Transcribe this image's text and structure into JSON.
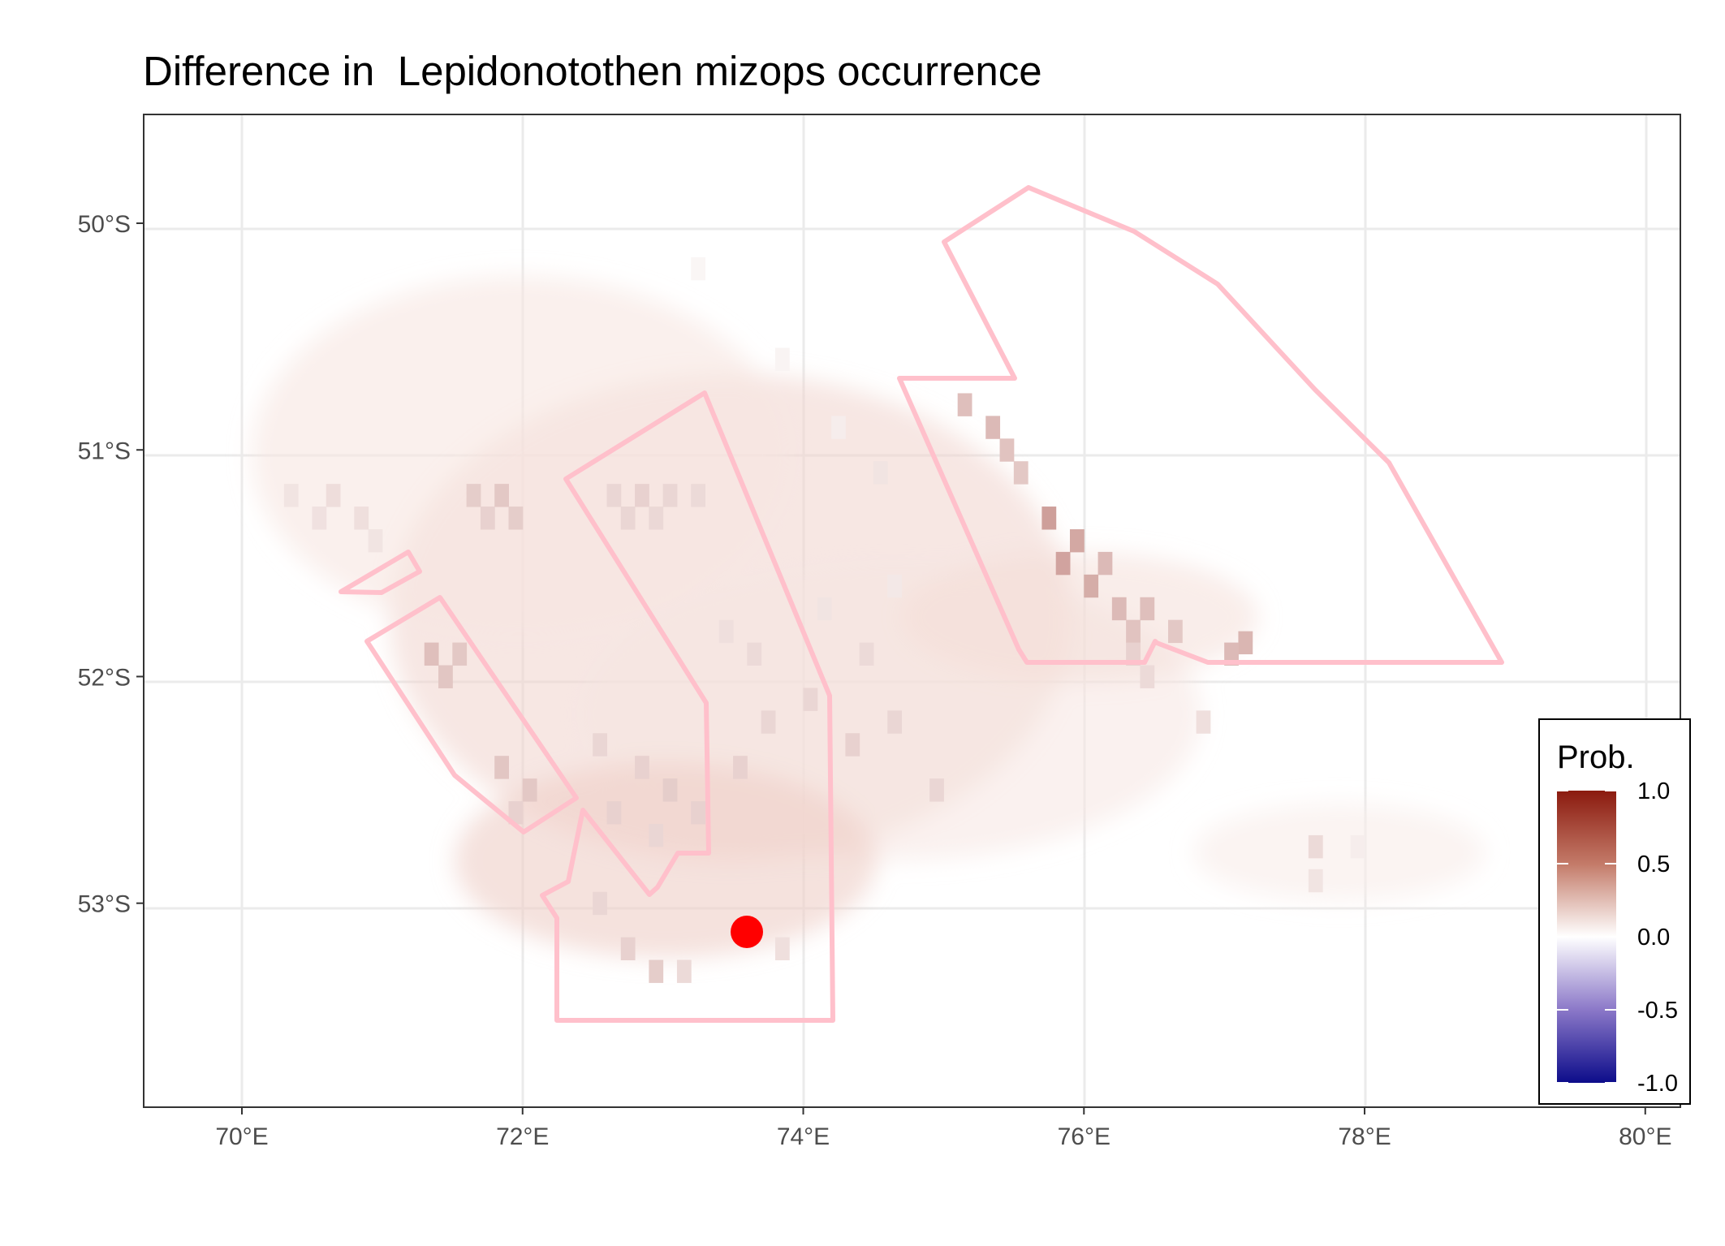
{
  "title": "Difference in  Lepidonotothen mizops occurrence",
  "chart_data": {
    "type": "heatmap",
    "title": "Difference in  Lepidonotothen mizops occurrence",
    "x_ticks": [
      {
        "value": 70,
        "label": "70°E"
      },
      {
        "value": 72,
        "label": "72°E"
      },
      {
        "value": 74,
        "label": "74°E"
      },
      {
        "value": 76,
        "label": "76°E"
      },
      {
        "value": 78,
        "label": "78°E"
      },
      {
        "value": 80,
        "label": "80°E"
      }
    ],
    "y_ticks": [
      {
        "value": -50,
        "label": "50°S"
      },
      {
        "value": -51,
        "label": "51°S"
      },
      {
        "value": -52,
        "label": "52°S"
      },
      {
        "value": -53,
        "label": "53°S"
      }
    ],
    "xlim": [
      69.3,
      80.25
    ],
    "ylim": [
      -53.9,
      -49.52
    ],
    "grid": true,
    "legend": {
      "title": "Prob.",
      "position": "bottom-right",
      "ticks": [
        "1.0",
        "0.5",
        "0.0",
        "-0.5",
        "-1.0"
      ],
      "tick_values": [
        1.0,
        0.5,
        0.0,
        -0.5,
        -1.0
      ],
      "colors": {
        "high": "#8b1a0e",
        "mid": "#ffffff",
        "low": "#0c0c8a"
      }
    },
    "grid_resolution_deg": 0.1,
    "cells": [
      [
        73.0,
        51.2,
        0.18
      ],
      [
        73.2,
        51.2,
        0.16
      ],
      [
        72.6,
        51.2,
        0.18
      ],
      [
        72.8,
        51.2,
        0.2
      ],
      [
        72.7,
        51.3,
        0.18
      ],
      [
        72.9,
        51.3,
        0.17
      ],
      [
        71.6,
        51.2,
        0.22
      ],
      [
        71.8,
        51.2,
        0.24
      ],
      [
        71.9,
        51.3,
        0.22
      ],
      [
        71.7,
        51.3,
        0.2
      ],
      [
        70.6,
        51.2,
        0.15
      ],
      [
        70.8,
        51.3,
        0.14
      ],
      [
        70.5,
        51.3,
        0.13
      ],
      [
        70.9,
        51.4,
        0.12
      ],
      [
        70.3,
        51.2,
        0.12
      ],
      [
        71.3,
        51.9,
        0.28
      ],
      [
        71.5,
        51.9,
        0.24
      ],
      [
        71.4,
        52.0,
        0.25
      ],
      [
        71.8,
        52.4,
        0.25
      ],
      [
        72.0,
        52.5,
        0.24
      ],
      [
        71.9,
        52.6,
        0.2
      ],
      [
        75.1,
        50.8,
        0.28
      ],
      [
        75.3,
        50.9,
        0.3
      ],
      [
        75.4,
        51.0,
        0.26
      ],
      [
        75.5,
        51.1,
        0.24
      ],
      [
        75.7,
        51.3,
        0.42
      ],
      [
        75.9,
        51.4,
        0.38
      ],
      [
        75.8,
        51.5,
        0.4
      ],
      [
        76.0,
        51.6,
        0.36
      ],
      [
        76.1,
        51.5,
        0.3
      ],
      [
        76.2,
        51.7,
        0.3
      ],
      [
        76.4,
        51.7,
        0.28
      ],
      [
        76.6,
        51.8,
        0.24
      ],
      [
        76.3,
        51.8,
        0.26
      ],
      [
        77.1,
        51.85,
        0.32
      ],
      [
        77.0,
        51.9,
        0.3
      ],
      [
        76.3,
        51.9,
        0.2
      ],
      [
        76.4,
        52.0,
        0.16
      ],
      [
        76.8,
        52.2,
        0.14
      ],
      [
        72.5,
        52.3,
        0.18
      ],
      [
        72.8,
        52.4,
        0.2
      ],
      [
        73.0,
        52.5,
        0.22
      ],
      [
        72.6,
        52.6,
        0.2
      ],
      [
        72.9,
        52.7,
        0.18
      ],
      [
        73.2,
        52.6,
        0.2
      ],
      [
        73.5,
        52.4,
        0.2
      ],
      [
        73.7,
        52.2,
        0.18
      ],
      [
        74.0,
        52.1,
        0.18
      ],
      [
        74.3,
        52.3,
        0.2
      ],
      [
        74.6,
        52.2,
        0.18
      ],
      [
        74.9,
        52.5,
        0.18
      ],
      [
        73.4,
        51.8,
        0.14
      ],
      [
        73.6,
        51.9,
        0.16
      ],
      [
        74.1,
        51.7,
        0.12
      ],
      [
        74.4,
        51.9,
        0.16
      ],
      [
        74.6,
        51.6,
        0.1
      ],
      [
        72.7,
        53.2,
        0.2
      ],
      [
        72.9,
        53.3,
        0.22
      ],
      [
        73.1,
        53.3,
        0.16
      ],
      [
        72.5,
        53.0,
        0.18
      ],
      [
        73.8,
        53.2,
        0.14
      ],
      [
        74.5,
        51.1,
        0.12
      ],
      [
        74.2,
        50.9,
        0.08
      ],
      [
        73.8,
        50.6,
        0.05
      ],
      [
        73.2,
        50.2,
        0.04
      ],
      [
        77.6,
        52.75,
        0.16
      ],
      [
        77.6,
        52.9,
        0.12
      ],
      [
        77.9,
        52.75,
        0.08
      ]
    ]
  }
}
